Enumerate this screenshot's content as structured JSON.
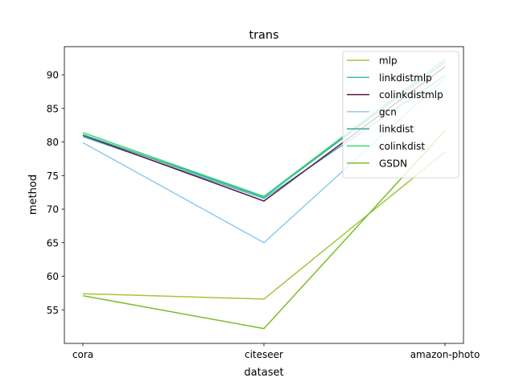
{
  "chart_data": {
    "type": "line",
    "title": "trans",
    "xlabel": "dataset",
    "ylabel": "method",
    "categories": [
      "cora",
      "citeseer",
      "amazon-photo"
    ],
    "ylim": [
      50.0,
      94.2
    ],
    "yticks": [
      55,
      60,
      65,
      70,
      75,
      80,
      85,
      90
    ],
    "grid": false,
    "legend_position": "top-right",
    "series": [
      {
        "name": "mlp",
        "color": "#a9c23f",
        "values": [
          57.4,
          56.6,
          78.5
        ]
      },
      {
        "name": "linkdistmlp",
        "color": "#4fb3c9",
        "values": [
          80.8,
          71.6,
          89.9
        ]
      },
      {
        "name": "colinkdistmlp",
        "color": "#5a1a45",
        "values": [
          81.0,
          71.2,
          91.2
        ]
      },
      {
        "name": "gcn",
        "color": "#8fcbef",
        "values": [
          79.9,
          65.0,
          89.5
        ]
      },
      {
        "name": "linkdist",
        "color": "#3fa39a",
        "values": [
          81.1,
          71.8,
          91.9
        ]
      },
      {
        "name": "colinkdist",
        "color": "#2fdc6f",
        "values": [
          81.4,
          71.9,
          92.3
        ]
      },
      {
        "name": "GSDN",
        "color": "#7bbd2a",
        "values": [
          57.1,
          52.2,
          81.7
        ]
      }
    ]
  }
}
